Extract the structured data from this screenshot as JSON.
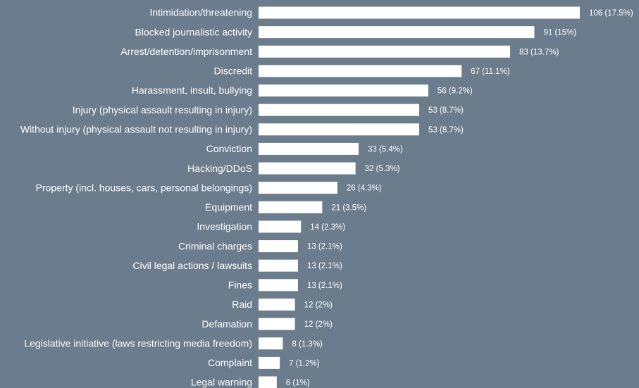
{
  "chart_data": {
    "type": "bar",
    "orientation": "horizontal",
    "color": "#ffffff",
    "categories": [
      "Intimidation/threatening",
      "Blocked journalistic activity",
      "Arrest/detention/imprisonment",
      "Discredit",
      "Harassment, insult, bullying",
      "Injury (physical assault resulting in injury)",
      "Without injury (physical assault not resulting in injury)",
      "Conviction",
      "Hacking/DDoS",
      "Property (incl. houses, cars, personal belongings)",
      "Equipment",
      "Investigation",
      "Criminal charges",
      "Civil legal actions / lawsuits",
      "Fines",
      "Raid",
      "Defamation",
      "Legislative initiative (laws restricting media freedom)",
      "Complaint",
      "Legal warning"
    ],
    "values": [
      106,
      91,
      83,
      67,
      56,
      53,
      53,
      33,
      32,
      26,
      21,
      14,
      13,
      13,
      13,
      12,
      12,
      8,
      7,
      6
    ],
    "value_labels": [
      "106 (17.5%)",
      "91 (15%)",
      "83 (13.7%)",
      "67 (11.1%)",
      "56 (9.2%)",
      "53 (8.7%)",
      "53 (8.7%)",
      "33 (5.4%)",
      "32 (5.3%)",
      "26 (4.3%)",
      "21 (3.5%)",
      "14 (2.3%)",
      "13 (2.1%)",
      "13 (2.1%)",
      "13 (2.1%)",
      "12 (2%)",
      "12 (2%)",
      "8 (1.3%)",
      "7 (1.2%)",
      "6 (1%)"
    ]
  }
}
